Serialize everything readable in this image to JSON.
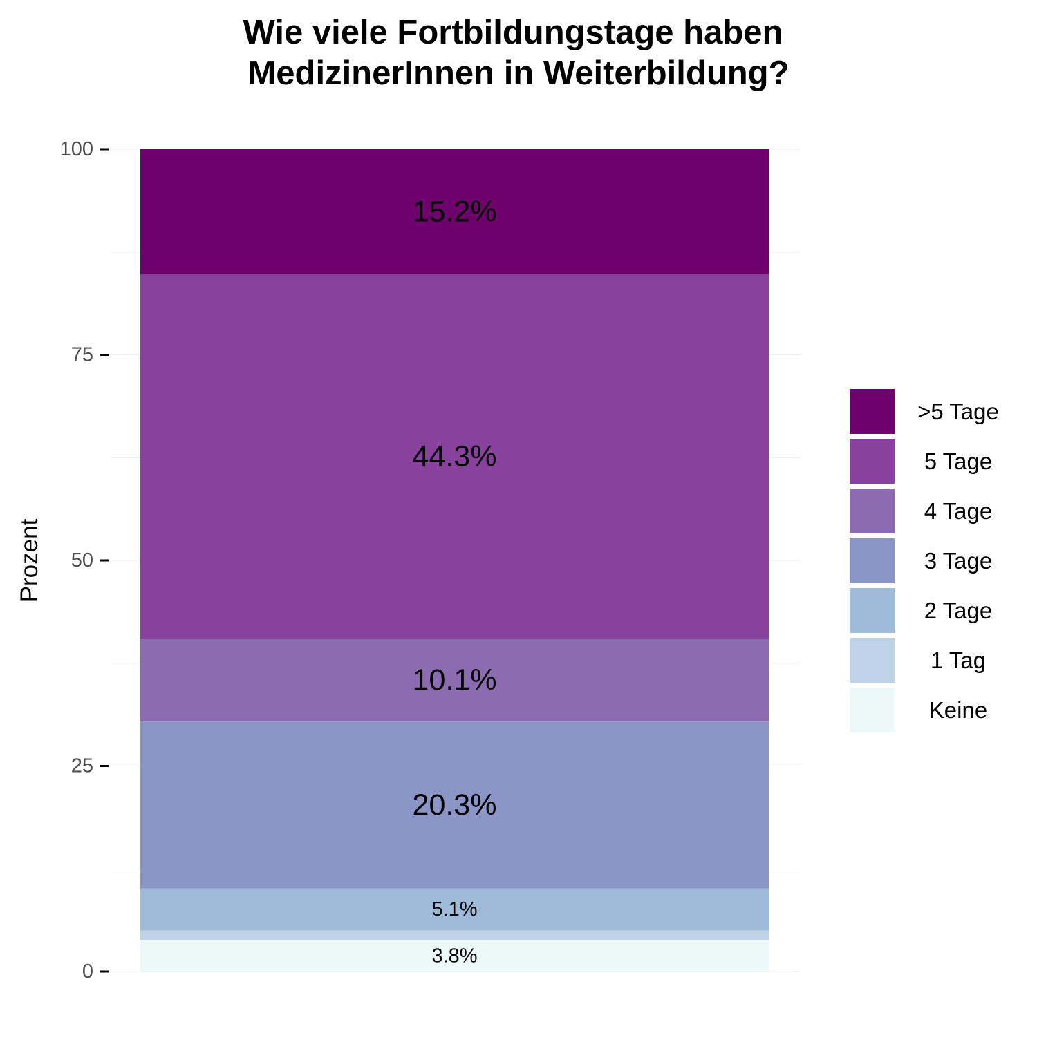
{
  "colors": {
    "background": "#ffffff",
    "grid": "#ebebeb",
    "tick": "#000000"
  },
  "chart_data": {
    "type": "bar",
    "stacked": true,
    "title": [
      "Wie viele Fortbildungstage haben",
      "MedizinerInnen in Weiterbildung?"
    ],
    "xlabel": "",
    "ylabel": "Prozent",
    "ylim": [
      0,
      100
    ],
    "yticks": [
      0,
      25,
      50,
      75,
      100
    ],
    "grid": true,
    "legend_position": "right",
    "segments": [
      {
        "category": "Keine",
        "value": 3.8,
        "label": "3.8%",
        "color": "#edf8f9"
      },
      {
        "category": "1 Tag",
        "value": 1.2,
        "label": "",
        "color": "#bfd3e6"
      },
      {
        "category": "2 Tage",
        "value": 5.1,
        "label": "5.1%",
        "color": "#9ebcda"
      },
      {
        "category": "3 Tage",
        "value": 20.3,
        "label": "20.3%",
        "color": "#8c96c6"
      },
      {
        "category": "4 Tage",
        "value": 10.1,
        "label": "10.1%",
        "color": "#8c6bb1"
      },
      {
        "category": "5 Tage",
        "value": 44.3,
        "label": "44.3%",
        "color": "#88419d"
      },
      {
        "category": ">5 Tage",
        "value": 15.2,
        "label": "15.2%",
        "color": "#6e016b"
      }
    ],
    "legend": [
      {
        "label": ">5 Tage",
        "color": "#6e016b"
      },
      {
        "label": "5 Tage",
        "color": "#88419d"
      },
      {
        "label": "4 Tage",
        "color": "#8c6bb1"
      },
      {
        "label": "3 Tage",
        "color": "#8c96c6"
      },
      {
        "label": "2 Tage",
        "color": "#9ebcda"
      },
      {
        "label": "1 Tag",
        "color": "#bfd3e6"
      },
      {
        "label": "Keine",
        "color": "#edf8f9"
      }
    ]
  }
}
